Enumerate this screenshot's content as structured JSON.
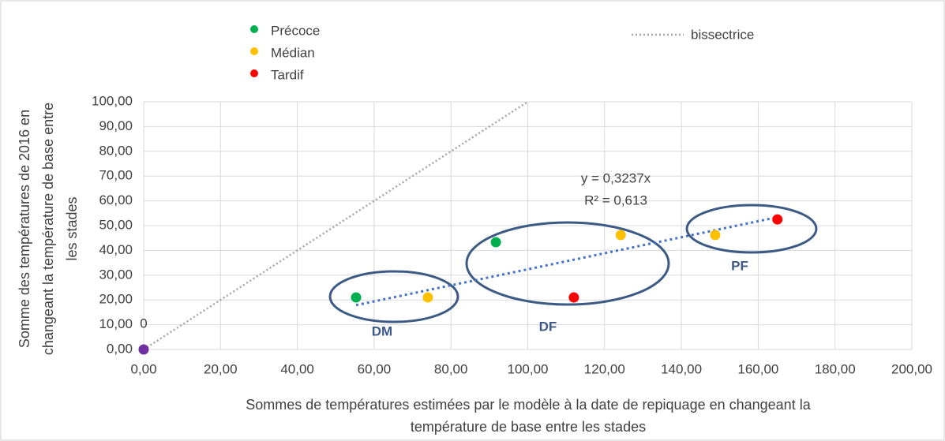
{
  "chart_data": {
    "type": "scatter",
    "xlabel": [
      "Sommes de températures  estimées par le modèle à la date de repiquage en changeant la",
      "température de base entre les stades"
    ],
    "ylabel": [
      "Somme des températures de 2016 en",
      "changeant la température de base entre",
      "les stades"
    ],
    "xlim": [
      0,
      200
    ],
    "ylim": [
      0,
      100
    ],
    "xticks": [
      {
        "value": 0,
        "label": "0,00"
      },
      {
        "value": 20,
        "label": "20,00"
      },
      {
        "value": 40,
        "label": "40,00"
      },
      {
        "value": 60,
        "label": "60,00"
      },
      {
        "value": 80,
        "label": "80,00"
      },
      {
        "value": 100,
        "label": "100,00"
      },
      {
        "value": 120,
        "label": "120,00"
      },
      {
        "value": 140,
        "label": "140,00"
      },
      {
        "value": 160,
        "label": "160,00"
      },
      {
        "value": 180,
        "label": "180,00"
      },
      {
        "value": 200,
        "label": "200,00"
      }
    ],
    "yticks": [
      {
        "value": 0,
        "label": "0,00"
      },
      {
        "value": 10,
        "label": "10,00"
      },
      {
        "value": 20,
        "label": "20,00"
      },
      {
        "value": 30,
        "label": "30,00"
      },
      {
        "value": 40,
        "label": "40,00"
      },
      {
        "value": 50,
        "label": "50,00"
      },
      {
        "value": 60,
        "label": "60,00"
      },
      {
        "value": 70,
        "label": "70,00"
      },
      {
        "value": 80,
        "label": "80,00"
      },
      {
        "value": 90,
        "label": "90,00"
      },
      {
        "value": 100,
        "label": "100,00"
      }
    ],
    "grid": true,
    "series": [
      {
        "name": "Précoce",
        "color": "#00b050",
        "x": [
          55.3,
          91.7
        ],
        "y": [
          21,
          43.3
        ]
      },
      {
        "name": "Médian",
        "color": "#ffc000",
        "x": [
          74,
          124.2,
          148.8
        ],
        "y": [
          21,
          46.2,
          46.2
        ]
      },
      {
        "name": "Tardif",
        "color": "#ff0000",
        "x": [
          112,
          165
        ],
        "y": [
          21,
          52.5
        ]
      }
    ],
    "origin_point": {
      "x": 0,
      "y": 0,
      "label": "0",
      "color": "#7030a0"
    },
    "bisector": {
      "name": "bissectrice",
      "color": "#a6a6a6"
    },
    "trendline": {
      "slope": 0.3237,
      "color": "#4472c4",
      "equation": "y = 0,3237x",
      "r2": "R² = 0,613"
    },
    "groups": [
      "DM",
      "DF",
      "PF"
    ]
  }
}
